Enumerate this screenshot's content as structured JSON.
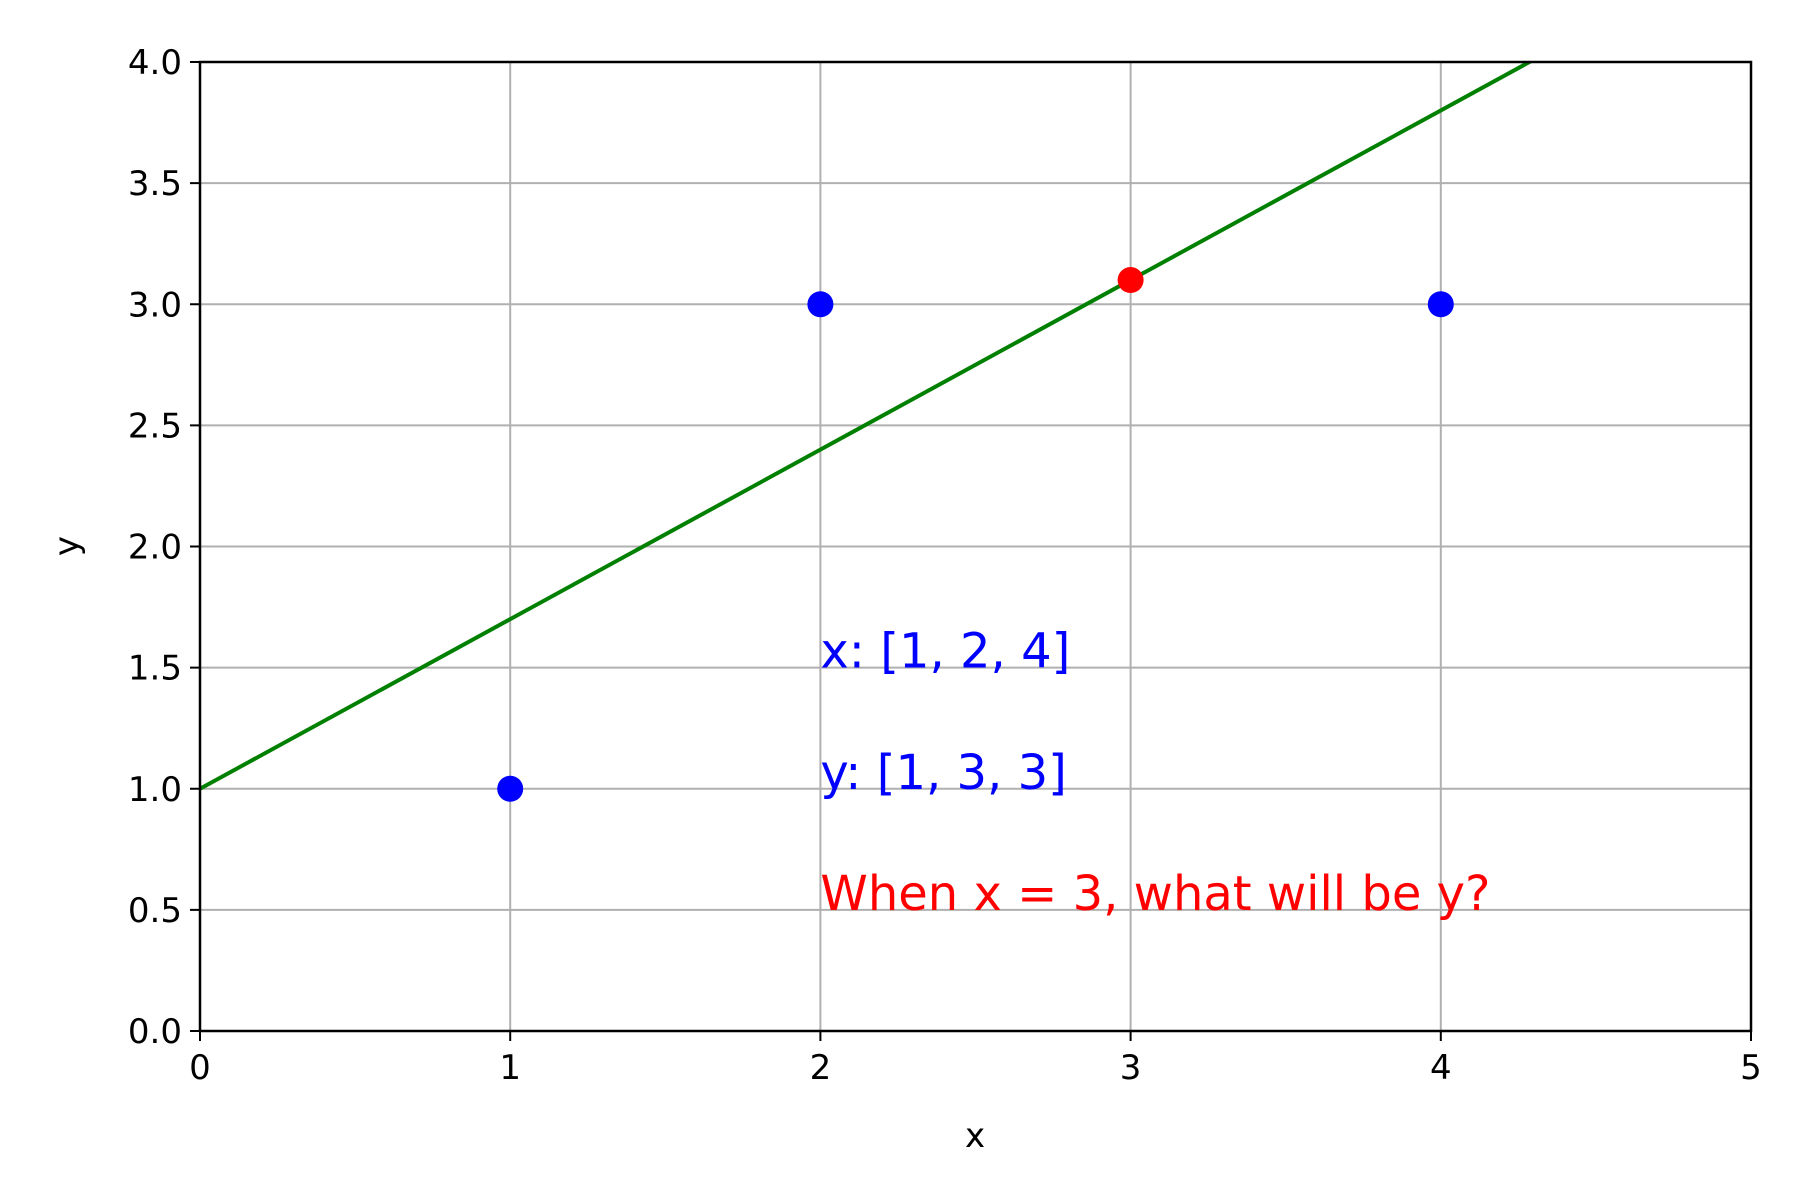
{
  "chart_data": {
    "type": "scatter",
    "title": "",
    "xlabel": "x",
    "ylabel": "y",
    "xlim": [
      0,
      5
    ],
    "ylim": [
      0,
      4.0
    ],
    "xticks": [
      0,
      1,
      2,
      3,
      4,
      5
    ],
    "xtick_labels": [
      "0",
      "1",
      "2",
      "3",
      "4",
      "5"
    ],
    "yticks": [
      0,
      0.5,
      1.0,
      1.5,
      2.0,
      2.5,
      3.0,
      3.5,
      4.0
    ],
    "ytick_labels": [
      "0.0",
      "0.5",
      "1.0",
      "1.5",
      "2.0",
      "2.5",
      "3.0",
      "3.5",
      "4.0"
    ],
    "grid": true,
    "series": [
      {
        "type": "scatter",
        "color": "#0000ff",
        "points": [
          [
            1,
            1
          ],
          [
            2,
            3
          ],
          [
            4,
            3
          ]
        ]
      },
      {
        "type": "line",
        "color": "#008000",
        "slope": 0.7,
        "intercept": 1.0
      },
      {
        "type": "scatter",
        "color": "#ff0000",
        "points": [
          [
            3,
            3.1
          ]
        ]
      }
    ],
    "annotations": [
      {
        "text": "x: [1, 2, 4]",
        "x": 2,
        "y": 1.5,
        "color": "#0000ff"
      },
      {
        "text": "y: [1, 3, 3]",
        "x": 2,
        "y": 1.0,
        "color": "#0000ff"
      },
      {
        "text": "When x = 3, what will be y?",
        "x": 2,
        "y": 0.5,
        "color": "#ff0000"
      }
    ]
  }
}
